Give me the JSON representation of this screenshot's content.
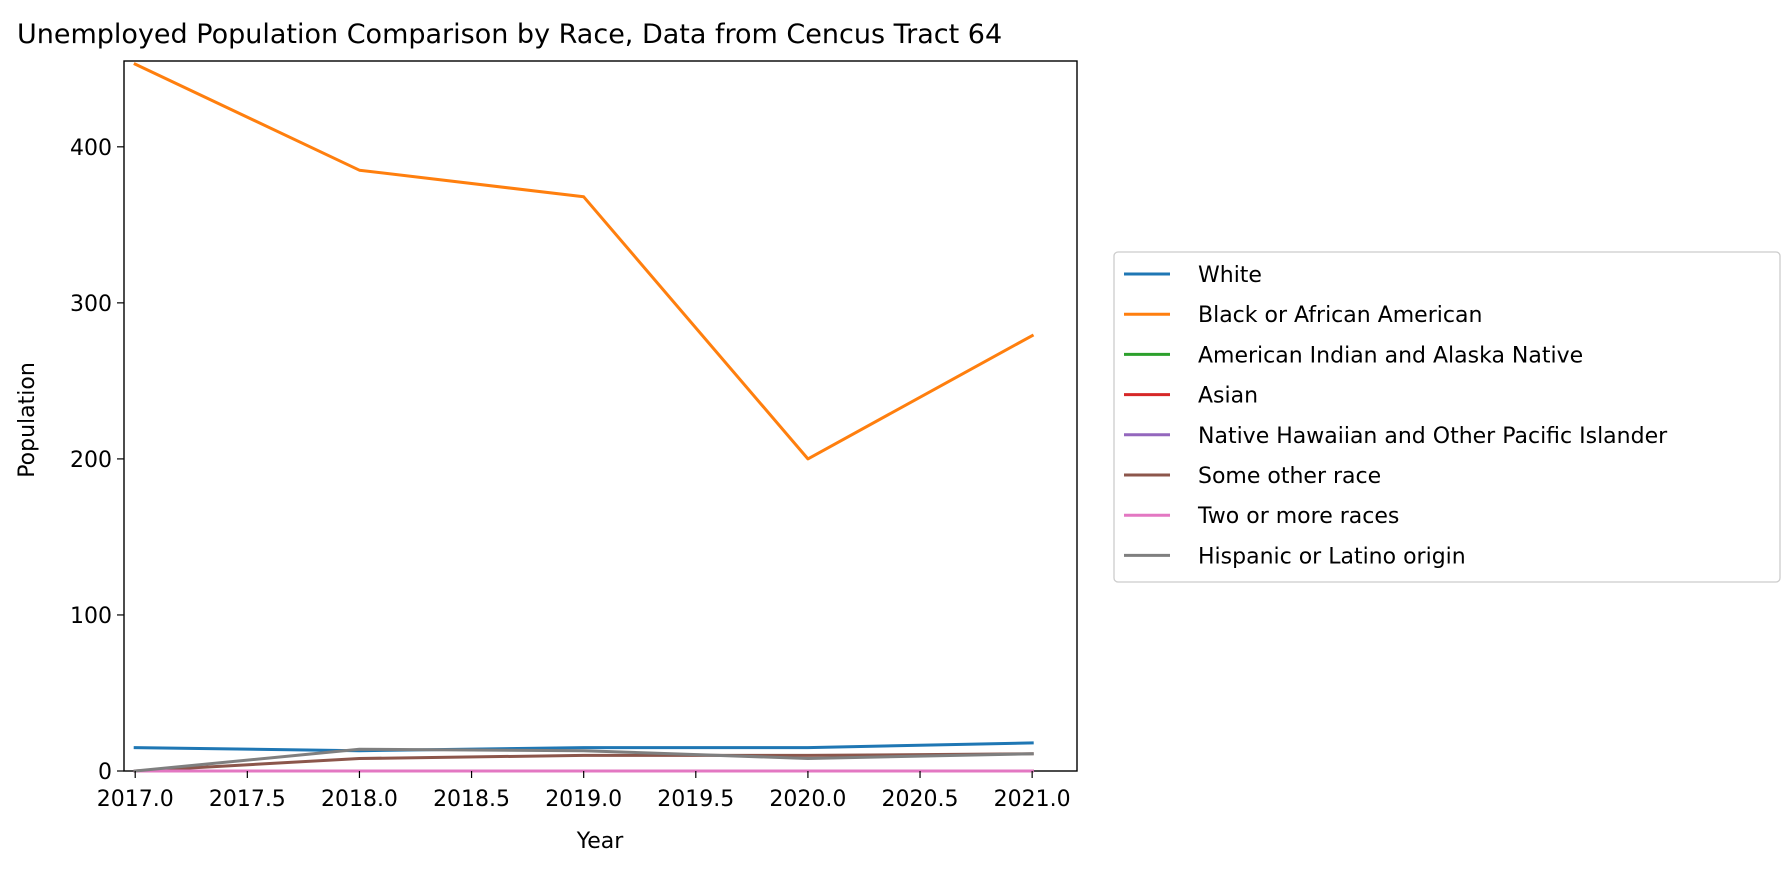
{
  "chart_data": {
    "type": "line",
    "title": "Unemployed Population Comparison by Race, Data from Cencus Tract 64",
    "xlabel": "Year",
    "ylabel": "Population",
    "x": [
      2017,
      2018,
      2019,
      2020,
      2021
    ],
    "xlim": [
      2016.95,
      2021.2
    ],
    "ylim": [
      0,
      455
    ],
    "xticks": [
      "2017.0",
      "2017.5",
      "2018.0",
      "2018.5",
      "2019.0",
      "2019.5",
      "2020.0",
      "2020.5",
      "2021.0"
    ],
    "yticks": [
      "0",
      "100",
      "200",
      "300",
      "400"
    ],
    "grid": false,
    "legend_position": "right",
    "series": [
      {
        "name": "White",
        "color": "#1f77b4",
        "values": [
          15,
          13,
          15,
          15,
          18
        ]
      },
      {
        "name": "Black or African American",
        "color": "#ff7f0e",
        "values": [
          453,
          385,
          368,
          200,
          279
        ]
      },
      {
        "name": "American Indian and Alaska Native",
        "color": "#2ca02c",
        "values": [
          0,
          0,
          0,
          0,
          0
        ]
      },
      {
        "name": "Asian",
        "color": "#d62728",
        "values": [
          0,
          0,
          0,
          0,
          0
        ]
      },
      {
        "name": "Native Hawaiian and Other Pacific Islander",
        "color": "#9467bd",
        "values": [
          0,
          0,
          0,
          0,
          0
        ]
      },
      {
        "name": "Some other race",
        "color": "#8c564b",
        "values": [
          0,
          8,
          10,
          10,
          11
        ]
      },
      {
        "name": "Two or more races",
        "color": "#e377c2",
        "values": [
          0,
          0,
          0,
          0,
          0
        ]
      },
      {
        "name": "Hispanic or Latino origin",
        "color": "#7f7f7f",
        "values": [
          0,
          14,
          13,
          8,
          11
        ]
      }
    ]
  }
}
